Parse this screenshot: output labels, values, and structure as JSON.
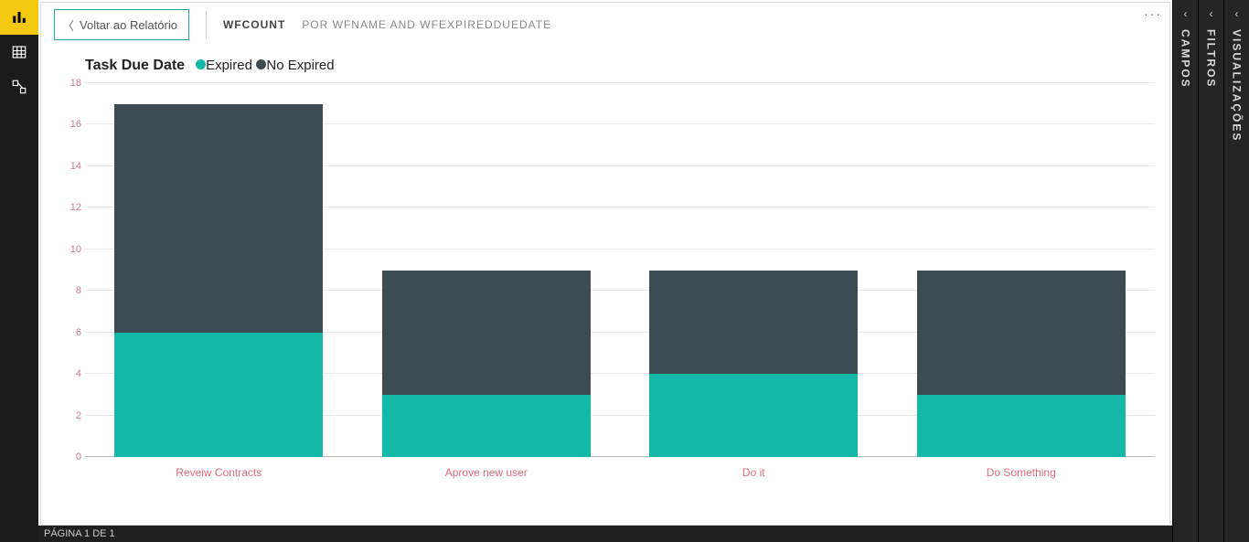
{
  "nav": {
    "items": [
      "report",
      "data",
      "model"
    ],
    "active_index": 0
  },
  "topbar": {
    "back_label": "Voltar ao Relatório",
    "breadcrumb_main": "WFCOUNT",
    "breadcrumb_sub": "POR WFNAME AND WFEXPIREDDUEDATE"
  },
  "legend": {
    "title": "Task Due Date",
    "items": [
      {
        "label": "Expired",
        "color": "#13b8a6"
      },
      {
        "label": "No Expired",
        "color": "#3d4b52"
      }
    ]
  },
  "chart": {
    "type": "stacked-bar",
    "y": {
      "min": 0,
      "max": 18,
      "step": 2,
      "tick_color": "#c97b8b",
      "grid_color": "#e9e9e9"
    },
    "x_label_color": "#e2697e",
    "bar_width_ratio": 0.78,
    "background_color": "#ffffff",
    "categories": [
      "Reveiw Contracts",
      "Aprove new user",
      "Do it",
      "Do Something"
    ],
    "series": [
      {
        "name": "Expired",
        "color": "#13b8a6",
        "values": [
          6,
          3,
          4,
          3
        ]
      },
      {
        "name": "No Expired",
        "color": "#3d4b52",
        "values": [
          11,
          6,
          5,
          6
        ]
      }
    ]
  },
  "footer": {
    "page_indicator": "PÁGINA 1 DE 1"
  },
  "right_panels": [
    {
      "label": "VISUALIZAÇÕES"
    },
    {
      "label": "FILTROS"
    },
    {
      "label": "CAMPOS"
    }
  ]
}
